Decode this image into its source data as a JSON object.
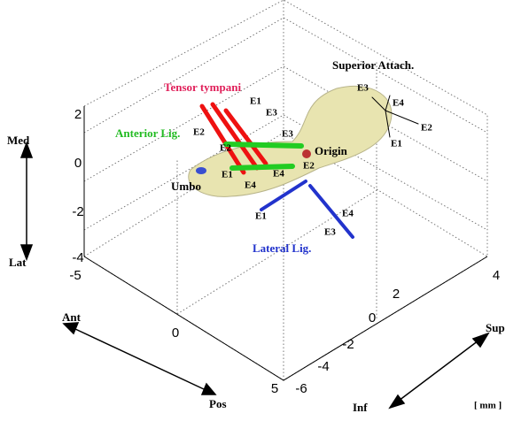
{
  "labels": {
    "superior": "Superior Attach.",
    "tensor": "Tensor tympani",
    "anterior": "Anterior Lig.",
    "origin": "Origin",
    "umbo": "Umbo",
    "lateral": "Lateral Lig.",
    "unit": "[ mm ]"
  },
  "directions": {
    "med": "Med",
    "lat": "Lat",
    "ant": "Ant",
    "pos": "Pos",
    "sup": "Sup",
    "inf": "Inf"
  },
  "vertical_ticks": [
    2,
    0,
    -2,
    -4
  ],
  "ant_pos_ticks": [
    -5,
    0,
    5
  ],
  "sup_inf_ticks": [
    -6,
    -4,
    -2,
    0,
    2,
    4
  ],
  "points": {
    "tensor": [
      "E2",
      "E1",
      "E3"
    ],
    "superior": [
      "E3",
      "E4",
      "E2",
      "E1"
    ],
    "anterior": [
      "E2",
      "E3",
      "E1",
      "E4",
      "E4",
      "E2"
    ],
    "lateral": [
      "E1",
      "E4",
      "E3"
    ]
  }
}
